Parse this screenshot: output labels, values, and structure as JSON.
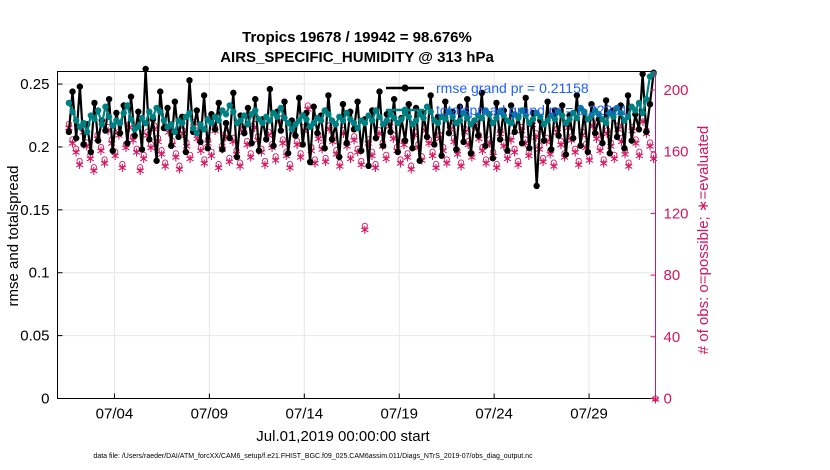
{
  "chart_data": {
    "type": "line",
    "title_line1": "Tropics 19678 / 19942 = 98.676%",
    "title_line2": "AIRS_SPECIFIC_HUMIDITY @ 313 hPa",
    "xlabel": "Jul.01,2019 00:00:00 start",
    "ylabel_left": "rmse and totalspread",
    "ylabel_right": "# of obs: o=possible; ∗=evaluated",
    "xlim": [
      0,
      31.5
    ],
    "ylim_left": [
      0,
      0.26
    ],
    "ylim_right": [
      0,
      212
    ],
    "x_ticks": [
      {
        "x": 3,
        "label": "07/04"
      },
      {
        "x": 8,
        "label": "07/09"
      },
      {
        "x": 13,
        "label": "07/14"
      },
      {
        "x": 18,
        "label": "07/19"
      },
      {
        "x": 23,
        "label": "07/24"
      },
      {
        "x": 28,
        "label": "07/29"
      }
    ],
    "y_ticks_left": [
      "0",
      "0.05",
      "0.1",
      "0.15",
      "0.2",
      "0.25"
    ],
    "y_ticks_right": [
      "0",
      "40",
      "80",
      "120",
      "160",
      "200"
    ],
    "grid": true,
    "legend_position": "top-right",
    "colors": {
      "rmse": "#000000",
      "spread": "#008080",
      "obs": "#d6145f",
      "legend_text": "#1f5fff"
    },
    "series": [
      {
        "name": "rmse grand pr = 0.21158",
        "axis": "left",
        "values": [
          0.212,
          0.244,
          0.207,
          0.248,
          0.202,
          0.218,
          0.196,
          0.235,
          0.205,
          0.221,
          0.213,
          0.238,
          0.197,
          0.227,
          0.211,
          0.233,
          0.203,
          0.24,
          0.209,
          0.228,
          0.198,
          0.262,
          0.206,
          0.222,
          0.189,
          0.244,
          0.215,
          0.231,
          0.201,
          0.236,
          0.208,
          0.224,
          0.196,
          0.253,
          0.212,
          0.229,
          0.204,
          0.241,
          0.199,
          0.226,
          0.214,
          0.235,
          0.198,
          0.219,
          0.207,
          0.243,
          0.192,
          0.225,
          0.211,
          0.231,
          0.203,
          0.238,
          0.197,
          0.222,
          0.206,
          0.246,
          0.201,
          0.228,
          0.213,
          0.236,
          0.195,
          0.221,
          0.209,
          0.239,
          0.202,
          0.227,
          0.188,
          0.232,
          0.211,
          0.225,
          0.199,
          0.241,
          0.206,
          0.218,
          0.192,
          0.234,
          0.203,
          0.228,
          0.214,
          0.236,
          0.197,
          0.222,
          0.185,
          0.229,
          0.207,
          0.244,
          0.201,
          0.226,
          0.212,
          0.238,
          0.196,
          0.223,
          0.205,
          0.234,
          0.199,
          0.231,
          0.189,
          0.227,
          0.208,
          0.241,
          0.202,
          0.224,
          0.193,
          0.236,
          0.211,
          0.228,
          0.198,
          0.232,
          0.204,
          0.238,
          0.195,
          0.221,
          0.209,
          0.243,
          0.201,
          0.226,
          0.191,
          0.235,
          0.206,
          0.229,
          0.197,
          0.233,
          0.212,
          0.224,
          0.203,
          0.239,
          0.199,
          0.227,
          0.169,
          0.221,
          0.205,
          0.236,
          0.198,
          0.229,
          0.209,
          0.233,
          0.194,
          0.225,
          0.207,
          0.241,
          0.201,
          0.228,
          0.196,
          0.234,
          0.211,
          0.222,
          0.203,
          0.237,
          0.195,
          0.229,
          0.208,
          0.233,
          0.199,
          0.241,
          0.205,
          0.226,
          0.214,
          0.258,
          0.212,
          0.234,
          0.259
        ]
      },
      {
        "name": "totalspread grand pr = 0.22301",
        "axis": "left",
        "values": [
          0.235,
          0.228,
          0.221,
          0.216,
          0.219,
          0.212,
          0.225,
          0.222,
          0.229,
          0.218,
          0.232,
          0.224,
          0.217,
          0.221,
          0.219,
          0.227,
          0.233,
          0.222,
          0.214,
          0.216,
          0.223,
          0.219,
          0.228,
          0.224,
          0.231,
          0.228,
          0.221,
          0.216,
          0.218,
          0.212,
          0.221,
          0.219,
          0.224,
          0.227,
          0.215,
          0.211,
          0.218,
          0.214,
          0.222,
          0.219,
          0.224,
          0.221,
          0.229,
          0.226,
          0.233,
          0.228,
          0.219,
          0.221,
          0.225,
          0.218,
          0.226,
          0.229,
          0.222,
          0.219,
          0.224,
          0.221,
          0.227,
          0.224,
          0.231,
          0.223,
          0.219,
          0.214,
          0.218,
          0.221,
          0.225,
          0.222,
          0.216,
          0.219,
          0.223,
          0.221,
          0.229,
          0.226,
          0.221,
          0.218,
          0.224,
          0.221,
          0.227,
          0.222,
          0.219,
          0.215,
          0.221,
          0.219,
          0.225,
          0.221,
          0.229,
          0.224,
          0.218,
          0.221,
          0.226,
          0.223,
          0.219,
          0.222,
          0.227,
          0.224,
          0.218,
          0.221,
          0.226,
          0.223,
          0.232,
          0.228,
          0.221,
          0.219,
          0.224,
          0.222,
          0.228,
          0.224,
          0.219,
          0.221,
          0.227,
          0.223,
          0.218,
          0.221,
          0.225,
          0.223,
          0.229,
          0.226,
          0.219,
          0.223,
          0.228,
          0.225,
          0.221,
          0.219,
          0.226,
          0.223,
          0.229,
          0.225,
          0.219,
          0.222,
          0.227,
          0.224,
          0.218,
          0.221,
          0.225,
          0.222,
          0.228,
          0.225,
          0.219,
          0.222,
          0.227,
          0.223,
          0.231,
          0.228,
          0.222,
          0.225,
          0.229,
          0.226,
          0.222,
          0.219,
          0.227,
          0.224,
          0.231,
          0.227,
          0.221,
          0.224,
          0.232,
          0.229,
          0.235,
          0.227,
          0.238,
          0.256,
          0.258
        ]
      },
      {
        "name": "obs possible",
        "axis": "right",
        "marker": "o",
        "values": [
          178,
          168,
          162,
          154,
          175,
          166,
          158,
          150,
          171,
          163,
          155,
          176,
          168,
          160,
          173,
          152,
          165,
          178,
          170,
          162,
          150,
          158,
          173,
          165,
          177,
          169,
          161,
          153,
          175,
          167,
          159,
          151,
          174,
          166,
          158,
          179,
          171,
          163,
          155,
          168,
          160,
          176,
          152,
          164,
          172,
          156,
          169,
          161,
          153,
          175,
          167,
          159,
          178,
          170,
          162,
          154,
          173,
          165,
          157,
          182,
          168,
          160,
          152,
          175,
          167,
          159,
          176,
          190,
          163,
          155,
          171,
          164,
          156,
          177,
          169,
          161,
          153,
          174,
          166,
          158,
          170,
          162,
          154,
          112,
          168,
          160,
          152,
          174,
          166,
          158,
          179,
          171,
          163,
          155,
          167,
          159,
          151,
          173,
          165,
          157,
          176,
          168,
          160,
          152,
          171,
          163,
          155,
          177,
          169,
          161,
          153,
          175,
          167,
          159,
          179,
          171,
          163,
          155,
          168,
          160,
          152,
          174,
          166,
          158,
          170,
          162,
          154,
          176,
          168,
          160,
          180,
          172,
          164,
          156,
          169,
          161,
          153,
          175,
          167,
          159,
          178,
          170,
          162,
          154,
          173,
          165,
          157,
          179,
          171,
          163,
          155,
          174,
          166,
          158,
          177,
          169,
          161,
          153,
          176,
          168,
          160,
          182,
          174,
          166,
          158
        ]
      },
      {
        "name": "obs evaluated",
        "axis": "right",
        "marker": "*",
        "values": [
          176,
          166,
          160,
          152,
          173,
          164,
          156,
          148,
          169,
          161,
          153,
          174,
          166,
          158,
          171,
          150,
          163,
          176,
          168,
          160,
          148,
          156,
          171,
          163,
          175,
          167,
          159,
          151,
          173,
          165,
          157,
          149,
          172,
          164,
          156,
          177,
          169,
          161,
          153,
          166,
          158,
          174,
          150,
          162,
          170,
          154,
          167,
          159,
          151,
          173,
          165,
          157,
          176,
          168,
          160,
          152,
          171,
          163,
          155,
          180,
          166,
          158,
          150,
          173,
          165,
          157,
          174,
          188,
          161,
          153,
          169,
          162,
          154,
          175,
          167,
          159,
          151,
          172,
          164,
          156,
          168,
          160,
          152,
          110,
          166,
          158,
          150,
          172,
          164,
          156,
          177,
          169,
          161,
          153,
          165,
          157,
          149,
          171,
          163,
          155,
          174,
          166,
          158,
          150,
          169,
          161,
          153,
          175,
          167,
          159,
          151,
          173,
          165,
          157,
          177,
          169,
          161,
          153,
          166,
          158,
          150,
          172,
          164,
          156,
          168,
          160,
          152,
          174,
          166,
          158,
          178,
          170,
          162,
          154,
          167,
          159,
          151,
          173,
          165,
          157,
          176,
          168,
          160,
          152,
          171,
          163,
          155,
          177,
          169,
          161,
          153,
          172,
          164,
          156,
          175,
          167,
          159,
          151,
          174,
          166,
          158,
          180,
          172,
          164,
          156
        ]
      }
    ]
  },
  "legend": {
    "rmse_label": "rmse grand pr = 0.21158",
    "spread_label": "totalspread grand pr = 0.22301"
  },
  "footer": {
    "data_file": "data file: /Users/raeder/DAI/ATM_forcXX/CAM6_setup/f.e21.FHIST_BGC.f09_025.CAM6assim.011/Diags_NTrS_2019-07/obs_diag_output.nc"
  }
}
